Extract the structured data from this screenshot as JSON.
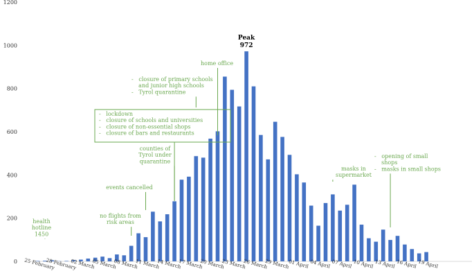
{
  "chart_data": {
    "type": "bar",
    "title": "",
    "xlabel": "",
    "ylabel": "",
    "ylim": [
      0,
      1200
    ],
    "yticks": [
      0,
      200,
      400,
      600,
      800,
      1000,
      1200
    ],
    "grid": false,
    "bar_color": "#4472c4",
    "annotation_color": "#6aa84f",
    "x_tick_labels": [
      "25 February",
      "28 February",
      "02 March",
      "05 March",
      "08 March",
      "11 March",
      "14 March",
      "17 March",
      "20 March",
      "23 March",
      "26 March",
      "29 March",
      "01 April",
      "04 April",
      "07 April",
      "10 April",
      "13 April",
      "16 April",
      "19 April"
    ],
    "categories": [
      "25 February",
      "26 February",
      "27 February",
      "28 February",
      "29 February",
      "01 March",
      "02 March",
      "03 March",
      "04 March",
      "05 March",
      "06 March",
      "07 March",
      "08 March",
      "09 March",
      "10 March",
      "11 March",
      "12 March",
      "13 March",
      "14 March",
      "15 March",
      "16 March",
      "17 March",
      "18 March",
      "19 March",
      "20 March",
      "21 March",
      "22 March",
      "23 March",
      "24 March",
      "25 March",
      "26 March",
      "27 March",
      "28 March",
      "29 March",
      "30 March",
      "31 March",
      "01 April",
      "02 April",
      "03 April",
      "04 April",
      "05 April",
      "06 April",
      "07 April",
      "08 April",
      "09 April",
      "10 April",
      "11 April",
      "12 April",
      "13 April",
      "14 April",
      "15 April",
      "16 April",
      "17 April",
      "18 April",
      "19 April",
      "20 April"
    ],
    "values": [
      2,
      3,
      5,
      1,
      2,
      6,
      8,
      13,
      17,
      22,
      15,
      32,
      28,
      72,
      130,
      112,
      230,
      185,
      218,
      278,
      378,
      392,
      487,
      480,
      568,
      602,
      855,
      794,
      717,
      972,
      810,
      585,
      472,
      646,
      576,
      493,
      403,
      365,
      258,
      165,
      270,
      310,
      235,
      262,
      355,
      170,
      107,
      91,
      147,
      99,
      118,
      78,
      57,
      37,
      43,
      0
    ],
    "peak": {
      "label": "Peak",
      "value_label": "972",
      "category": "25 March"
    },
    "annotations": [
      {
        "id": "health-hotline",
        "lines": [
          "health",
          "hotline",
          "1450"
        ],
        "category": "26 February",
        "boxed": false
      },
      {
        "id": "no-flights",
        "lines": [
          "no flights from",
          "risk areas"
        ],
        "category": "09 March",
        "boxed": false
      },
      {
        "id": "events-cancelled",
        "lines": [
          "events cancelled"
        ],
        "category": "11 March",
        "boxed": false
      },
      {
        "id": "lockdown",
        "lines": [
          "-   lockdown",
          "-   closure of schools and universities",
          "-   closure of non-essential shops",
          "-   closure of bars and restaurants"
        ],
        "category": "15 March",
        "boxed": true
      },
      {
        "id": "counties-tyrol",
        "lines": [
          "counties of",
          "Tyrol under",
          "quarantine"
        ],
        "category": "15 March",
        "boxed": false
      },
      {
        "id": "primary-schools",
        "lines": [
          "-   closure of primary schools",
          "    and junior high schools",
          "-   Tyrol quarantine"
        ],
        "category": "18 March",
        "boxed": false
      },
      {
        "id": "home-office",
        "lines": [
          "home office"
        ],
        "category": "21 March",
        "boxed": false
      },
      {
        "id": "masks-supermarket",
        "lines": [
          "masks in",
          "supermarket"
        ],
        "category": "06 April",
        "boxed": false
      },
      {
        "id": "small-shops",
        "lines": [
          "-   opening of small",
          "    shops",
          "-   masks in small shops"
        ],
        "category": "14 April",
        "boxed": false
      }
    ]
  }
}
